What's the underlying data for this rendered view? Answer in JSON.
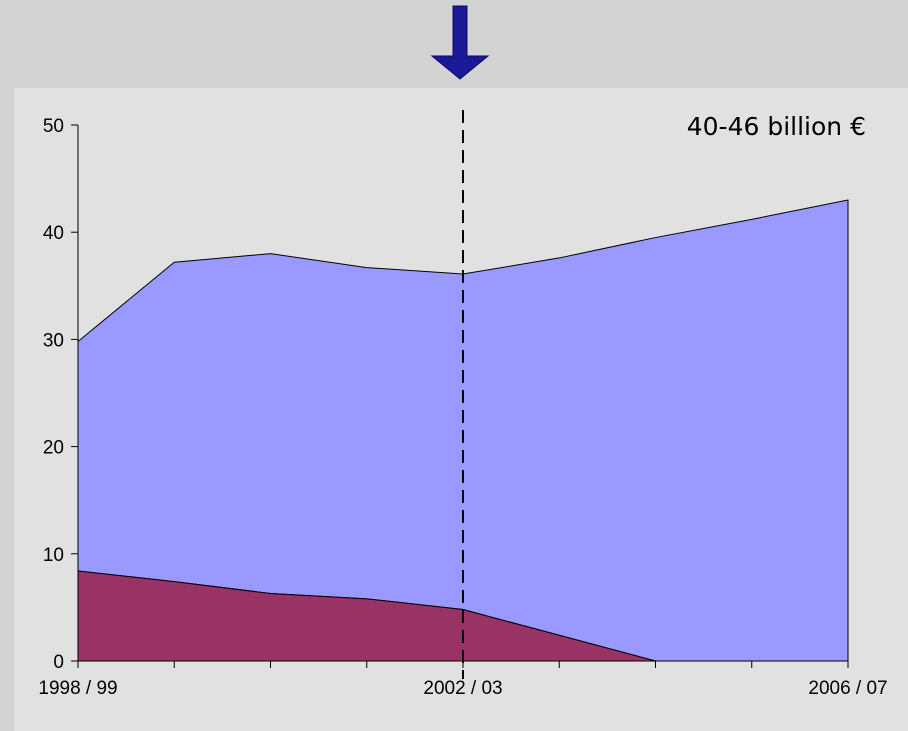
{
  "chart_data": {
    "type": "area",
    "stacked": true,
    "x": [
      "1998 / 99",
      "1999 / 00",
      "2000 / 01",
      "2001 / 02",
      "2002 / 03",
      "2003 / 04",
      "2004 / 05",
      "2005 / 06",
      "2006 / 07"
    ],
    "x_tick_labels": [
      "1998 / 99",
      "2002 / 03",
      "2006 / 07"
    ],
    "series": [
      {
        "values": [
          8.4,
          7.4,
          6.3,
          5.8,
          4.8,
          2.4,
          0,
          0,
          0
        ],
        "color": "#993366"
      },
      {
        "values": [
          21.4,
          29.8,
          31.7,
          30.9,
          31.3,
          35.2,
          39.5,
          41.2,
          43.0
        ],
        "color": "#9999ff"
      }
    ],
    "totals": [
      29.8,
      37.2,
      38.0,
      36.7,
      36.1,
      37.6,
      39.5,
      41.2,
      43.0
    ],
    "ylim": [
      0,
      50
    ],
    "y_ticks": [
      0,
      10,
      20,
      30,
      40,
      50
    ],
    "title": "",
    "xlabel": "",
    "ylabel": "",
    "grid": false,
    "annotation": "40-46 billion €",
    "marker": {
      "x": "2002 / 03",
      "style": "dashed-vertical-line",
      "arrow": "down",
      "arrow_color": "#1a1a99"
    }
  }
}
